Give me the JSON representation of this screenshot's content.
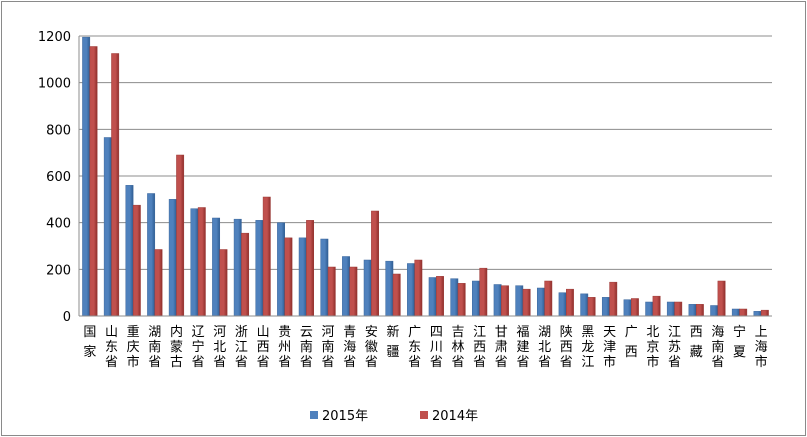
{
  "chart_data": {
    "type": "bar",
    "title": "",
    "xlabel": "",
    "ylabel": "",
    "ylim": [
      0,
      1200
    ],
    "yticks": [
      0,
      200,
      400,
      600,
      800,
      1000,
      1200
    ],
    "grid": true,
    "legend": "bottom",
    "categories": [
      "国 家",
      "山东省",
      "重庆市",
      "湖南省",
      "内蒙古",
      "辽宁省",
      "河北省",
      "浙江省",
      "山西省",
      "贵州省",
      "云南省",
      "河南省",
      "青海省",
      "安徽省",
      "新 疆",
      "广东省",
      "四川省",
      "吉林省",
      "江西省",
      "甘肃省",
      "福建省",
      "湖北省",
      "陕西省",
      "黑龙江",
      "天津市",
      "广 西",
      "北京市",
      "江苏省",
      "西 藏",
      "海南省",
      "宁 夏",
      "上海市"
    ],
    "series": [
      {
        "name": "2015年",
        "color": "#4f81bd",
        "values": [
          1195,
          765,
          560,
          525,
          500,
          460,
          420,
          415,
          410,
          400,
          335,
          330,
          255,
          240,
          235,
          225,
          165,
          160,
          150,
          135,
          130,
          120,
          100,
          95,
          80,
          70,
          60,
          60,
          50,
          45,
          30,
          20
        ]
      },
      {
        "name": "2014年",
        "color": "#c0504d",
        "values": [
          1155,
          1125,
          475,
          285,
          690,
          465,
          285,
          355,
          510,
          335,
          410,
          210,
          210,
          450,
          180,
          240,
          170,
          140,
          205,
          130,
          115,
          150,
          115,
          80,
          145,
          75,
          85,
          60,
          50,
          150,
          30,
          25
        ]
      }
    ]
  }
}
